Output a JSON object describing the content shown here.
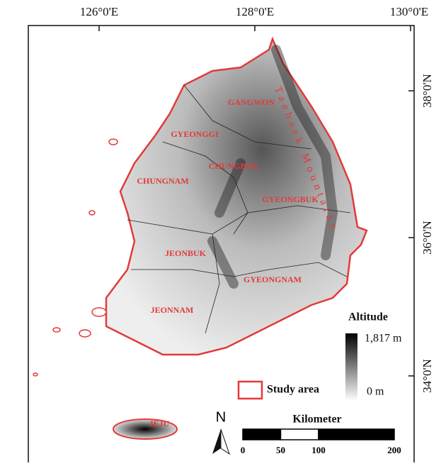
{
  "map": {
    "lon_labels": [
      "126°0'E",
      "128°0'E",
      "130°0'E"
    ],
    "lat_labels": [
      "38°0'N",
      "36°0'N",
      "34°0'N"
    ],
    "regions": [
      "GANGWON",
      "GYEONGGI",
      "CHUNGBUK",
      "CHUNGNAM",
      "GYEONGBUK",
      "JEONBUK",
      "GYEONGNAM",
      "JEONNAM",
      "JEJU"
    ],
    "mountain_label": "Taebaek Mountains",
    "legend": {
      "title": "Altitude",
      "max": "1,817 m",
      "min": "0 m",
      "study_area": "Study area"
    },
    "north": "N",
    "scale": {
      "title": "Kilometer",
      "ticks": [
        0,
        50,
        100,
        200
      ]
    }
  }
}
